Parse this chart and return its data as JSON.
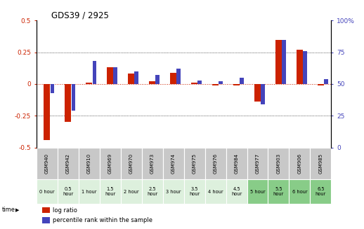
{
  "title": "GDS39 / 2925",
  "samples": [
    "GSM940",
    "GSM942",
    "GSM910",
    "GSM969",
    "GSM970",
    "GSM973",
    "GSM974",
    "GSM975",
    "GSM976",
    "GSM984",
    "GSM977",
    "GSM903",
    "GSM906",
    "GSM985"
  ],
  "time_labels": [
    "0 hour",
    "0.5\nhour",
    "1 hour",
    "1.5\nhour",
    "2 hour",
    "2.5\nhour",
    "3 hour",
    "3.5\nhour",
    "4 hour",
    "4.5\nhour",
    "5 hour",
    "5.5\nhour",
    "6 hour",
    "6.5\nhour"
  ],
  "log_ratio": [
    -0.44,
    -0.3,
    0.01,
    0.13,
    0.08,
    0.02,
    0.09,
    0.01,
    -0.01,
    -0.01,
    -0.14,
    0.35,
    0.27,
    -0.01
  ],
  "percentile": [
    43,
    29,
    68,
    63,
    60,
    57,
    62,
    53,
    52,
    55,
    34,
    85,
    76,
    54
  ],
  "ylim_left": [
    -0.5,
    0.5
  ],
  "ylim_right": [
    0,
    100
  ],
  "yticks_left": [
    -0.5,
    -0.25,
    0,
    0.25,
    0.5
  ],
  "ytick_labels_left": [
    "-0.5",
    "-0.25",
    "0",
    "0.25",
    "0.5"
  ],
  "yticks_right": [
    0,
    25,
    50,
    75,
    100
  ],
  "ytick_labels_right": [
    "0",
    "25",
    "50",
    "75",
    "100%"
  ],
  "red_color": "#cc2200",
  "blue_color": "#4444bb",
  "gsm_bg": "#c8c8c8",
  "time_bg_light": "#ddf0dd",
  "time_bg_dark": "#88cc88",
  "time_dark_indices": [
    10,
    11,
    12,
    13
  ]
}
